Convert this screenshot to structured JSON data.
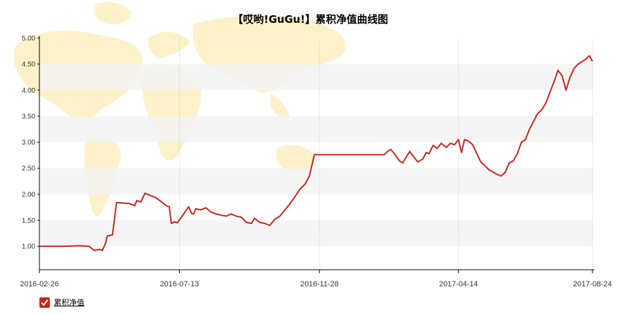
{
  "colors": {
    "line": "#c1271b",
    "band": "#f3f3f3",
    "map": "#fbeec0",
    "checkbox": "#c1271b"
  },
  "legend": {
    "label": "累积净值",
    "checked": true,
    "icon": "checkbox-checked-icon"
  },
  "chart_data": {
    "type": "line",
    "title": "【哎哟!GuGu!】累积净值曲线图",
    "xlabel": "",
    "ylabel": "",
    "ylim": [
      0.55,
      5.0
    ],
    "yticks": [
      "1.00",
      "1.50",
      "2.00",
      "2.50",
      "3.00",
      "3.50",
      "4.00",
      "4.50",
      "5.00"
    ],
    "xticks": [
      "2016-02-26",
      "2016-07-13",
      "2016-11-28",
      "2017-04-14",
      "2017-08-24"
    ],
    "xrange": [
      "2016-02-26",
      "2017-08-24"
    ],
    "grid": "alternating horizontal bands, dotted vertical lines at x ticks",
    "legend_position": "bottom-left",
    "series": [
      {
        "name": "累积净值",
        "points": [
          [
            "2016-02-26",
            1.0
          ],
          [
            "2016-03-20",
            1.0
          ],
          [
            "2016-04-05",
            1.01
          ],
          [
            "2016-04-15",
            1.0
          ],
          [
            "2016-04-20",
            0.92
          ],
          [
            "2016-04-25",
            0.94
          ],
          [
            "2016-04-28",
            0.92
          ],
          [
            "2016-05-01",
            1.05
          ],
          [
            "2016-05-03",
            1.2
          ],
          [
            "2016-05-08",
            1.22
          ],
          [
            "2016-05-12",
            1.84
          ],
          [
            "2016-05-18",
            1.83
          ],
          [
            "2016-05-25",
            1.82
          ],
          [
            "2016-05-30",
            1.78
          ],
          [
            "2016-06-01",
            1.88
          ],
          [
            "2016-06-05",
            1.85
          ],
          [
            "2016-06-09",
            2.02
          ],
          [
            "2016-06-15",
            1.97
          ],
          [
            "2016-06-20",
            1.93
          ],
          [
            "2016-06-25",
            1.86
          ],
          [
            "2016-06-30",
            1.78
          ],
          [
            "2016-07-03",
            1.76
          ],
          [
            "2016-07-05",
            1.44
          ],
          [
            "2016-07-08",
            1.47
          ],
          [
            "2016-07-11",
            1.45
          ],
          [
            "2016-07-15",
            1.56
          ],
          [
            "2016-07-20",
            1.7
          ],
          [
            "2016-07-22",
            1.76
          ],
          [
            "2016-07-25",
            1.63
          ],
          [
            "2016-07-27",
            1.62
          ],
          [
            "2016-07-29",
            1.72
          ],
          [
            "2016-08-03",
            1.7
          ],
          [
            "2016-08-08",
            1.74
          ],
          [
            "2016-08-13",
            1.66
          ],
          [
            "2016-08-18",
            1.62
          ],
          [
            "2016-08-23",
            1.6
          ],
          [
            "2016-08-28",
            1.58
          ],
          [
            "2016-09-02",
            1.62
          ],
          [
            "2016-09-07",
            1.58
          ],
          [
            "2016-09-12",
            1.56
          ],
          [
            "2016-09-17",
            1.46
          ],
          [
            "2016-09-22",
            1.44
          ],
          [
            "2016-09-25",
            1.54
          ],
          [
            "2016-09-30",
            1.46
          ],
          [
            "2016-10-05",
            1.44
          ],
          [
            "2016-10-10",
            1.4
          ],
          [
            "2016-10-15",
            1.52
          ],
          [
            "2016-10-20",
            1.58
          ],
          [
            "2016-10-25",
            1.7
          ],
          [
            "2016-10-30",
            1.82
          ],
          [
            "2016-11-04",
            1.96
          ],
          [
            "2016-11-09",
            2.1
          ],
          [
            "2016-11-14",
            2.2
          ],
          [
            "2016-11-18",
            2.35
          ],
          [
            "2016-11-23",
            2.76
          ],
          [
            "2016-11-30",
            2.76
          ],
          [
            "2017-01-31",
            2.76
          ],
          [
            "2017-02-03",
            2.82
          ],
          [
            "2017-02-06",
            2.86
          ],
          [
            "2017-02-09",
            2.8
          ],
          [
            "2017-02-12",
            2.72
          ],
          [
            "2017-02-15",
            2.64
          ],
          [
            "2017-02-18",
            2.6
          ],
          [
            "2017-02-21",
            2.7
          ],
          [
            "2017-02-25",
            2.82
          ],
          [
            "2017-02-28",
            2.74
          ],
          [
            "2017-03-05",
            2.62
          ],
          [
            "2017-03-10",
            2.68
          ],
          [
            "2017-03-13",
            2.8
          ],
          [
            "2017-03-16",
            2.78
          ],
          [
            "2017-03-20",
            2.94
          ],
          [
            "2017-03-24",
            2.88
          ],
          [
            "2017-03-28",
            2.98
          ],
          [
            "2017-04-02",
            2.9
          ],
          [
            "2017-04-06",
            2.98
          ],
          [
            "2017-04-10",
            2.95
          ],
          [
            "2017-04-14",
            3.05
          ],
          [
            "2017-04-17",
            2.8
          ],
          [
            "2017-04-20",
            3.05
          ],
          [
            "2017-04-24",
            3.02
          ],
          [
            "2017-04-28",
            2.95
          ],
          [
            "2017-05-02",
            2.78
          ],
          [
            "2017-05-06",
            2.62
          ],
          [
            "2017-05-10",
            2.55
          ],
          [
            "2017-05-14",
            2.47
          ],
          [
            "2017-05-18",
            2.43
          ],
          [
            "2017-05-22",
            2.38
          ],
          [
            "2017-05-26",
            2.35
          ],
          [
            "2017-05-30",
            2.42
          ],
          [
            "2017-06-03",
            2.6
          ],
          [
            "2017-06-07",
            2.64
          ],
          [
            "2017-06-11",
            2.78
          ],
          [
            "2017-06-15",
            3.0
          ],
          [
            "2017-06-19",
            3.05
          ],
          [
            "2017-06-23",
            3.25
          ],
          [
            "2017-06-27",
            3.4
          ],
          [
            "2017-07-01",
            3.55
          ],
          [
            "2017-07-05",
            3.62
          ],
          [
            "2017-07-09",
            3.75
          ],
          [
            "2017-07-13",
            3.95
          ],
          [
            "2017-07-17",
            4.15
          ],
          [
            "2017-07-21",
            4.38
          ],
          [
            "2017-07-25",
            4.28
          ],
          [
            "2017-07-29",
            4.0
          ],
          [
            "2017-08-02",
            4.25
          ],
          [
            "2017-08-06",
            4.42
          ],
          [
            "2017-08-10",
            4.5
          ],
          [
            "2017-08-14",
            4.55
          ],
          [
            "2017-08-18",
            4.6
          ],
          [
            "2017-08-21",
            4.66
          ],
          [
            "2017-08-24",
            4.55
          ]
        ]
      }
    ]
  }
}
